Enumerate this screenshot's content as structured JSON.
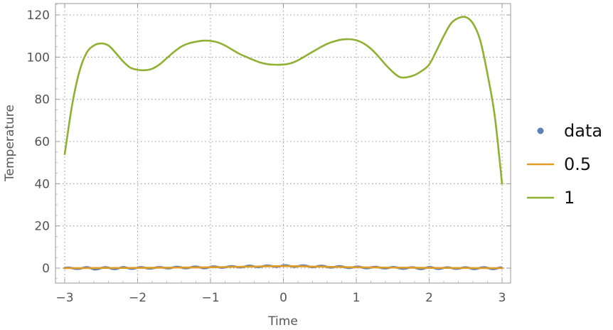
{
  "chart_data": {
    "type": "line",
    "title": "",
    "xlabel": "Time",
    "ylabel": "Temperature",
    "xlim": [
      -3.1,
      3.1
    ],
    "ylim": [
      -7,
      125
    ],
    "xticks": [
      -3,
      -2,
      -1,
      0,
      1,
      2,
      3
    ],
    "xtick_labels": [
      "−3",
      "−2",
      "−1",
      "0",
      "1",
      "2",
      "3"
    ],
    "yticks": [
      0,
      20,
      40,
      60,
      80,
      100,
      120
    ],
    "ytick_labels": [
      "0",
      "20",
      "40",
      "60",
      "80",
      "100",
      "120"
    ],
    "grid": true,
    "legend_position": "right",
    "series": [
      {
        "name": "data",
        "kind": "scatter",
        "color": "#5e81b5",
        "x": [
          -3.0,
          -2.9,
          -2.8,
          -2.7,
          -2.6,
          -2.5,
          -2.4,
          -2.3,
          -2.2,
          -2.1,
          -2.0,
          -1.9,
          -1.8,
          -1.7,
          -1.6,
          -1.5,
          -1.4,
          -1.3,
          -1.2,
          -1.1,
          -1.0,
          -0.9,
          -0.8,
          -0.7,
          -0.6,
          -0.5,
          -0.4,
          -0.3,
          -0.2,
          -0.1,
          0.0,
          0.1,
          0.2,
          0.3,
          0.4,
          0.5,
          0.6,
          0.7,
          0.8,
          0.9,
          1.0,
          1.1,
          1.2,
          1.3,
          1.4,
          1.5,
          1.6,
          1.7,
          1.8,
          1.9,
          2.0,
          2.1,
          2.2,
          2.3,
          2.4,
          2.5,
          2.6,
          2.7,
          2.8,
          2.9,
          3.0
        ],
        "y": [
          0.01,
          -0.2,
          0.05,
          0.1,
          -0.3,
          0.0,
          0.05,
          -0.1,
          0.1,
          0.0,
          0.14,
          0.05,
          0.2,
          0.1,
          0.25,
          0.3,
          0.2,
          0.35,
          0.4,
          0.3,
          0.37,
          0.5,
          0.6,
          0.55,
          0.7,
          0.78,
          0.8,
          0.9,
          0.85,
          1.0,
          1.0,
          0.95,
          1.0,
          0.9,
          0.85,
          0.78,
          0.7,
          0.6,
          0.55,
          0.45,
          0.37,
          0.3,
          0.3,
          0.2,
          0.25,
          0.14,
          0.1,
          0.0,
          0.05,
          -0.1,
          0.14,
          0.0,
          0.05,
          -0.05,
          0.1,
          0.0,
          -0.1,
          0.05,
          0.0,
          -0.1,
          0.01
        ]
      },
      {
        "name": "0.5",
        "kind": "line",
        "color": "#e19c24",
        "x": [
          -3.0,
          -2.5,
          -2.0,
          -1.5,
          -1.0,
          -0.5,
          0.0,
          0.5,
          1.0,
          1.5,
          2.0,
          2.5,
          3.0
        ],
        "y": [
          0.0,
          0.05,
          0.12,
          0.25,
          0.4,
          0.7,
          0.95,
          0.7,
          0.4,
          0.25,
          0.12,
          0.05,
          0.0
        ]
      },
      {
        "name": "1",
        "kind": "line",
        "color": "#8fb131",
        "x": [
          -3.0,
          -2.9,
          -2.8,
          -2.7,
          -2.6,
          -2.5,
          -2.4,
          -2.3,
          -2.2,
          -2.1,
          -2.0,
          -1.9,
          -1.8,
          -1.7,
          -1.6,
          -1.5,
          -1.4,
          -1.3,
          -1.2,
          -1.1,
          -1.0,
          -0.9,
          -0.8,
          -0.7,
          -0.6,
          -0.5,
          -0.4,
          -0.3,
          -0.2,
          -0.1,
          0.0,
          0.1,
          0.2,
          0.3,
          0.4,
          0.5,
          0.6,
          0.7,
          0.8,
          0.9,
          1.0,
          1.1,
          1.2,
          1.3,
          1.4,
          1.5,
          1.6,
          1.7,
          1.8,
          1.9,
          2.0,
          2.1,
          2.2,
          2.3,
          2.4,
          2.5,
          2.6,
          2.7,
          2.8,
          2.9,
          3.0
        ],
        "y": [
          54.0,
          77.0,
          93.0,
          102.0,
          105.5,
          106.5,
          105.5,
          102.0,
          98.0,
          95.0,
          94.0,
          93.8,
          94.5,
          96.5,
          99.5,
          102.5,
          105.0,
          106.5,
          107.3,
          107.8,
          107.7,
          107.0,
          105.5,
          103.5,
          101.5,
          100.0,
          98.5,
          97.3,
          96.6,
          96.4,
          96.5,
          97.1,
          98.5,
          100.5,
          102.5,
          104.5,
          106.3,
          107.5,
          108.3,
          108.5,
          108.0,
          106.5,
          104.0,
          100.5,
          96.5,
          93.0,
          90.5,
          90.5,
          91.5,
          93.5,
          96.5,
          103.0,
          110.0,
          116.0,
          118.5,
          119.0,
          116.0,
          108.0,
          92.0,
          72.0,
          40.0
        ]
      }
    ]
  }
}
